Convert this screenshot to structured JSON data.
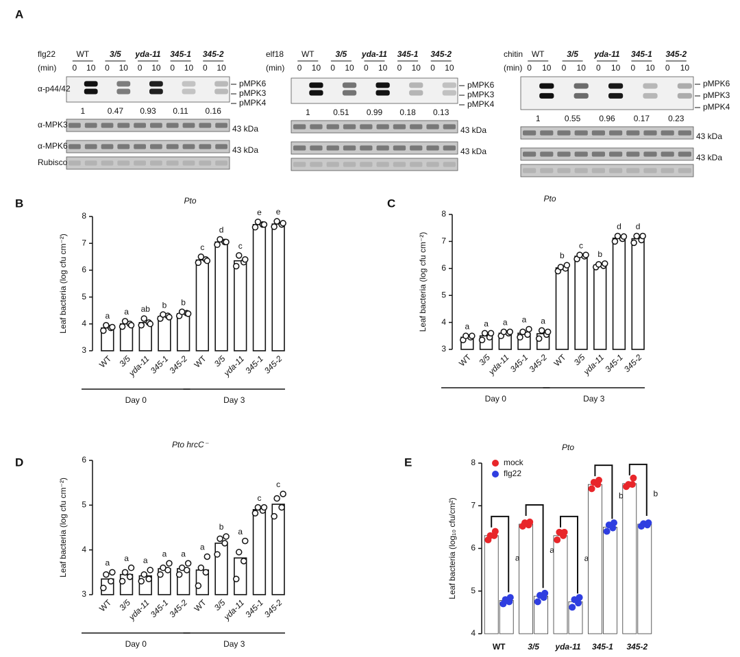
{
  "panel_a_label": "A",
  "row_labels": [
    "α-p44/42",
    "α-MPK3",
    "α-MPK6",
    "Rubisco"
  ],
  "band_labels": [
    "pMPK6",
    "pMPK3",
    "pMPK4"
  ],
  "size_marker": "43 kDa",
  "blots": [
    {
      "treatment": "flg22",
      "unit": "(min)",
      "genotypes": [
        "WT",
        "3/5",
        "yda-11",
        "345-1",
        "345-2"
      ],
      "times": [
        0,
        10
      ],
      "quant": [
        1,
        0.47,
        0.93,
        0.11,
        0.16
      ]
    },
    {
      "treatment": "elf18",
      "unit": "(min)",
      "genotypes": [
        "WT",
        "3/5",
        "yda-11",
        "345-1",
        "345-2"
      ],
      "times": [
        0,
        10
      ],
      "quant": [
        1,
        0.51,
        0.99,
        0.18,
        0.13
      ]
    },
    {
      "treatment": "chitin",
      "unit": "(min)",
      "genotypes": [
        "WT",
        "3/5",
        "yda-11",
        "345-1",
        "345-2"
      ],
      "times": [
        0,
        10
      ],
      "quant": [
        1,
        0.55,
        0.96,
        0.17,
        0.23
      ]
    }
  ],
  "chart_data": [
    {
      "type": "bar",
      "label": "B",
      "title": "Pto",
      "ylabel": "Leaf bacteria (log cfu cm⁻²)",
      "categories": [
        "WT",
        "3/5",
        "yda-11",
        "345-1",
        "345-2",
        "WT",
        "3/5",
        "yda-11",
        "345-1",
        "345-2"
      ],
      "groups": [
        "Day 0",
        "Day 3"
      ],
      "values": [
        3.85,
        4.0,
        4.05,
        4.28,
        4.38,
        6.38,
        7.05,
        6.35,
        7.7,
        7.72
      ],
      "points": [
        [
          3.75,
          3.85,
          3.95,
          3.88
        ],
        [
          3.9,
          4.0,
          4.1,
          3.95
        ],
        [
          3.95,
          4.05,
          4.2,
          4.0
        ],
        [
          4.2,
          4.3,
          4.35,
          4.25
        ],
        [
          4.3,
          4.4,
          4.45,
          4.38
        ],
        [
          6.28,
          6.4,
          6.5,
          6.35
        ],
        [
          6.95,
          7.05,
          7.15,
          7.05
        ],
        [
          6.15,
          6.3,
          6.55,
          6.4
        ],
        [
          7.6,
          7.7,
          7.8,
          7.7
        ],
        [
          7.62,
          7.7,
          7.82,
          7.75
        ]
      ],
      "annotations": [
        "a",
        "a",
        "ab",
        "b",
        "b",
        "c",
        "d",
        "c",
        "e",
        "e"
      ],
      "ylim": [
        3,
        8
      ],
      "yticks": [
        3,
        4,
        5,
        6,
        7,
        8
      ]
    },
    {
      "type": "bar",
      "label": "C",
      "title": "Pto",
      "ylabel": "Leaf bacteria (log cfu cm⁻²)",
      "categories": [
        "WT",
        "3/5",
        "yda-11",
        "345-1",
        "345-2",
        "WT",
        "3/5",
        "yda-11",
        "345-1",
        "345-2"
      ],
      "groups": [
        "Day 0",
        "Day 3"
      ],
      "values": [
        3.45,
        3.5,
        3.6,
        3.6,
        3.58,
        6.02,
        6.45,
        6.12,
        7.12,
        7.1
      ],
      "points": [
        [
          3.35,
          3.45,
          3.5,
          3.5
        ],
        [
          3.35,
          3.45,
          3.6,
          3.6
        ],
        [
          3.5,
          3.6,
          3.65,
          3.65
        ],
        [
          3.45,
          3.55,
          3.65,
          3.75
        ],
        [
          3.4,
          3.55,
          3.7,
          3.65
        ],
        [
          5.9,
          6.0,
          6.05,
          6.12
        ],
        [
          6.35,
          6.45,
          6.5,
          6.5
        ],
        [
          6.05,
          6.1,
          6.15,
          6.18
        ],
        [
          7.0,
          7.1,
          7.2,
          7.18
        ],
        [
          6.95,
          7.05,
          7.2,
          7.2
        ]
      ],
      "annotations": [
        "a",
        "a",
        "a",
        "a",
        "a",
        "b",
        "c",
        "b",
        "d",
        "d"
      ],
      "ylim": [
        3,
        8
      ],
      "yticks": [
        3,
        4,
        5,
        6,
        7,
        8
      ]
    },
    {
      "type": "bar",
      "label": "D",
      "title": "Pto hrcC⁻",
      "ylabel": "Leaf bacteria (log cfu cm⁻²)",
      "categories": [
        "WT",
        "3/5",
        "yda-11",
        "345-1",
        "345-2",
        "WT",
        "3/5",
        "yda-11",
        "345-1",
        "345-2"
      ],
      "groups": [
        "Day 0",
        "Day 3"
      ],
      "values": [
        3.35,
        3.45,
        3.42,
        3.58,
        3.58,
        3.55,
        4.15,
        3.82,
        4.9,
        5.02
      ],
      "points": [
        [
          3.15,
          3.3,
          3.45,
          3.5
        ],
        [
          3.3,
          3.4,
          3.5,
          3.6
        ],
        [
          3.3,
          3.35,
          3.45,
          3.55
        ],
        [
          3.45,
          3.55,
          3.6,
          3.7
        ],
        [
          3.45,
          3.55,
          3.6,
          3.7
        ],
        [
          3.2,
          3.5,
          3.6,
          3.85
        ],
        [
          3.9,
          4.15,
          4.25,
          4.3
        ],
        [
          3.35,
          3.75,
          3.95,
          4.2
        ],
        [
          4.82,
          4.88,
          4.95,
          4.95
        ],
        [
          4.75,
          4.95,
          5.15,
          5.25
        ]
      ],
      "annotations": [
        "a",
        "a",
        "a",
        "a",
        "a",
        "a",
        "b",
        "a",
        "c",
        "c"
      ],
      "ylim": [
        3,
        6
      ],
      "yticks": [
        3,
        4,
        5,
        6
      ]
    },
    {
      "type": "grouped_bar",
      "label": "E",
      "title": "Pto",
      "ylabel": "Leaf bacteria (log₁₀ cfu/cm²)",
      "categories": [
        "WT",
        "3/5",
        "yda-11",
        "345-1",
        "345-2"
      ],
      "series": [
        {
          "name": "mock",
          "color": "#e8262a",
          "values": [
            6.3,
            6.57,
            6.3,
            7.5,
            7.52
          ],
          "points": [
            [
              6.2,
              6.3,
              6.3,
              6.4
            ],
            [
              6.52,
              6.55,
              6.6,
              6.62
            ],
            [
              6.2,
              6.3,
              6.38,
              6.38
            ],
            [
              7.4,
              7.5,
              7.55,
              7.6
            ],
            [
              7.45,
              7.5,
              7.5,
              7.65
            ]
          ]
        },
        {
          "name": "flg22",
          "color": "#2f3ee0",
          "values": [
            4.78,
            4.88,
            4.75,
            6.5,
            6.57
          ],
          "points": [
            [
              4.7,
              4.75,
              4.8,
              4.85
            ],
            [
              4.75,
              4.85,
              4.9,
              4.95
            ],
            [
              4.62,
              4.72,
              4.8,
              4.85
            ],
            [
              6.4,
              6.48,
              6.55,
              6.6
            ],
            [
              6.52,
              6.55,
              6.58,
              6.6
            ]
          ]
        }
      ],
      "annotations": [
        "a",
        "a",
        "a",
        "b",
        "b"
      ],
      "legend": "upper left",
      "ylim": [
        4,
        8
      ],
      "yticks": [
        4,
        5,
        6,
        7,
        8
      ]
    }
  ]
}
